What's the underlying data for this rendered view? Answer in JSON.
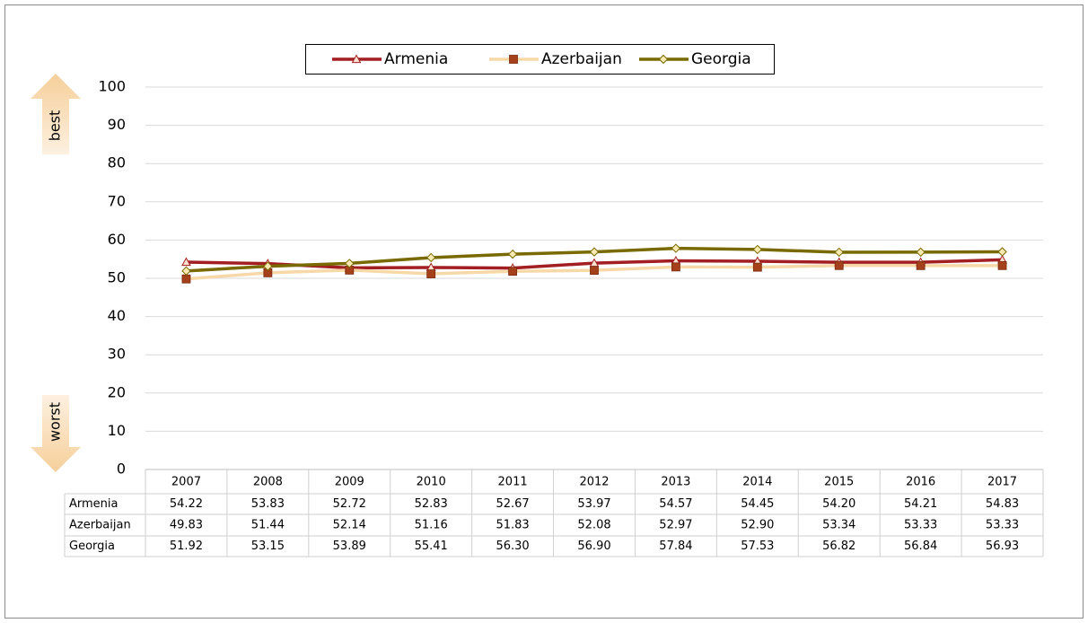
{
  "chart_data": {
    "type": "line",
    "categories": [
      "2007",
      "2008",
      "2009",
      "2010",
      "2011",
      "2012",
      "2013",
      "2014",
      "2015",
      "2016",
      "2017"
    ],
    "series": [
      {
        "name": "Armenia",
        "color": "#a31e22",
        "marker": "triangle",
        "marker_color": "#fbe3d0",
        "values": [
          54.22,
          53.83,
          52.72,
          52.83,
          52.67,
          53.97,
          54.57,
          54.45,
          54.2,
          54.21,
          54.83
        ],
        "value_labels": [
          "54.22",
          "53.83",
          "52.72",
          "52.83",
          "52.67",
          "53.97",
          "54.57",
          "54.45",
          "54.20",
          "54.21",
          "54.83"
        ]
      },
      {
        "name": "Azerbaijan",
        "color": "#f7d9a9",
        "marker": "square",
        "marker_color": "#a4401a",
        "values": [
          49.83,
          51.44,
          52.14,
          51.16,
          51.83,
          52.08,
          52.97,
          52.9,
          53.34,
          53.33,
          53.33
        ],
        "value_labels": [
          "49.83",
          "51.44",
          "52.14",
          "51.16",
          "51.83",
          "52.08",
          "52.97",
          "52.90",
          "53.34",
          "53.33",
          "53.33"
        ]
      },
      {
        "name": "Georgia",
        "color": "#786a00",
        "marker": "diamond",
        "marker_color": "#f7e9b0",
        "values": [
          51.92,
          53.15,
          53.89,
          55.41,
          56.3,
          56.9,
          57.84,
          57.53,
          56.82,
          56.84,
          56.93
        ],
        "value_labels": [
          "51.92",
          "53.15",
          "53.89",
          "55.41",
          "56.30",
          "56.90",
          "57.84",
          "57.53",
          "56.82",
          "56.84",
          "56.93"
        ]
      }
    ],
    "ylim": [
      0,
      100
    ],
    "yticks": [
      0,
      10,
      20,
      30,
      40,
      50,
      60,
      70,
      80,
      90,
      100
    ],
    "grid": true,
    "legend": "top",
    "annotations": [
      "best",
      "worst"
    ]
  }
}
